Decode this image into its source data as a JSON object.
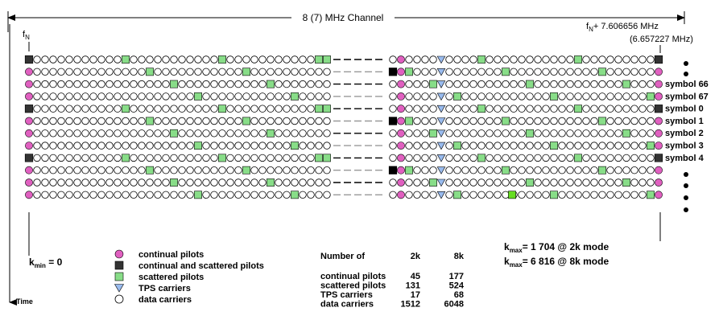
{
  "header": {
    "channel_label": "8 (7) MHz Channel",
    "fn_label": "f",
    "fn_sub": "N",
    "fn_plus_pre": "f",
    "fn_plus_sub": "N",
    "fn_plus_value": "+ 7.606656 MHz",
    "fn_plus_alt": "(6.657227 MHz)"
  },
  "symbols": [
    {
      "label": "symbol 66"
    },
    {
      "label": "symbol 67"
    },
    {
      "label": "symbol   0"
    },
    {
      "label": "symbol   1"
    },
    {
      "label": "symbol   2"
    },
    {
      "label": "symbol   3"
    },
    {
      "label": "symbol   4"
    }
  ],
  "axis": {
    "kmin_pre": "k",
    "kmin_sub": "min",
    "kmin_value": " = 0",
    "time_label": "Time"
  },
  "legend": [
    {
      "shape": "circle-magenta",
      "label": "continual pilots"
    },
    {
      "shape": "square-black",
      "label": "continual and scattered pilots"
    },
    {
      "shape": "square-green",
      "label": "scattered pilots"
    },
    {
      "shape": "triangle-blue",
      "label": "TPS carriers"
    },
    {
      "shape": "circle-white",
      "label": "data carriers"
    }
  ],
  "counts": {
    "heading": "Number of",
    "col_2k": "2k",
    "col_8k": "8k",
    "rows": [
      {
        "label": "continual pilots",
        "v2k": "45",
        "v8k": "177"
      },
      {
        "label": "scattered pilots",
        "v2k": "131",
        "v8k": "524"
      },
      {
        "label": "TPS carriers",
        "v2k": "17",
        "v8k": "68"
      },
      {
        "label": "data carriers",
        "v2k": "1512",
        "v8k": "6048"
      }
    ]
  },
  "kmax": [
    {
      "pre": "k",
      "sub": "max",
      "value": "= 1 704 @ 2k mode"
    },
    {
      "pre": "k",
      "sub": "max",
      "value": "= 6 816 @ 8k mode"
    }
  ],
  "colors": {
    "continual": "#e060c0",
    "black": "#333333",
    "scattered": "#88dd88",
    "scattered_bright": "#66dd22",
    "tps": "#99bbee"
  }
}
